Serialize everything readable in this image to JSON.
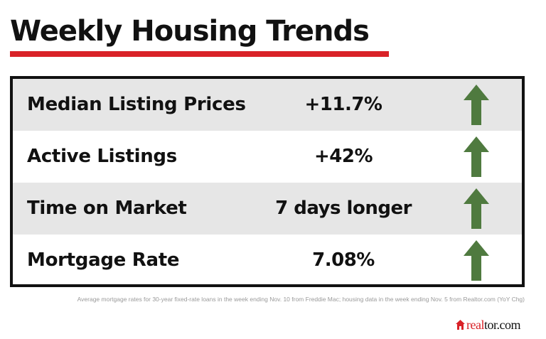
{
  "title": "Weekly Housing Trends",
  "colors": {
    "accent_red": "#d92228",
    "arrow_green": "#4f7a3f",
    "row_shade": "#e6e6e6"
  },
  "rows": [
    {
      "label": "Median Listing Prices",
      "value": "+11.7%",
      "trend_icon": "up-arrow"
    },
    {
      "label": "Active Listings",
      "value": "+42%",
      "trend_icon": "up-arrow"
    },
    {
      "label": "Time on Market",
      "value": "7 days longer",
      "trend_icon": "up-arrow"
    },
    {
      "label": "Mortgage Rate",
      "value": "7.08%",
      "trend_icon": "up-arrow"
    }
  ],
  "footnote": "Average mortgage rates for 30-year fixed-rate loans in the week ending Nov. 10 from Freddie Mac; housing data in the week ending Nov. 5 from Realtor.com (YoY Chg)",
  "brand": {
    "part1": "real",
    "part2": "tor.com",
    "icon": "house-icon"
  }
}
